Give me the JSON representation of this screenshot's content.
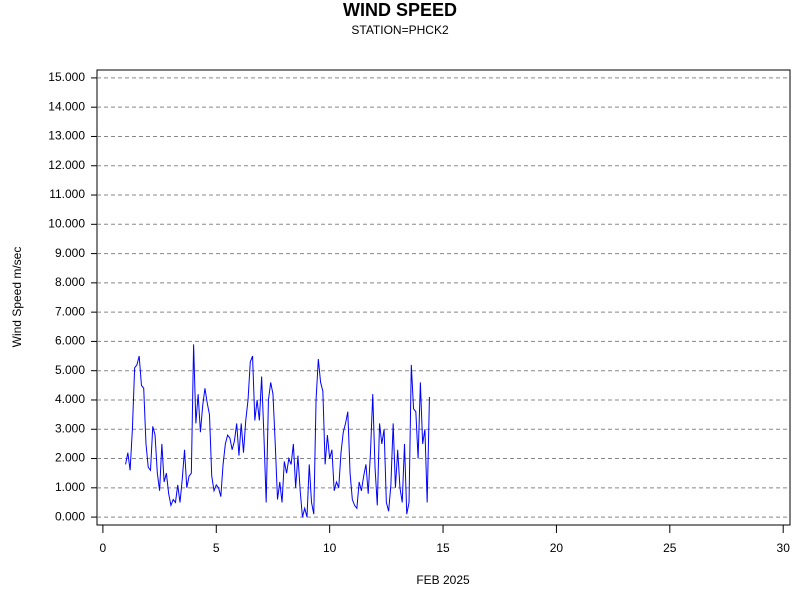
{
  "chart_data": {
    "type": "line",
    "title": "WIND SPEED",
    "subtitle": "STATION=PHCK2",
    "x_label": "FEB 2025",
    "y_label": "Wind Speed m/sec",
    "xlim": [
      -0.26,
      30.3
    ],
    "ylim": [
      -0.27,
      15.27
    ],
    "xticks": [
      0,
      5,
      10,
      15,
      20,
      25,
      30
    ],
    "yticks": [
      {
        "value": 0,
        "label": "0.000"
      },
      {
        "value": 1,
        "label": "1.000"
      },
      {
        "value": 2,
        "label": "2.000"
      },
      {
        "value": 3,
        "label": "3.000"
      },
      {
        "value": 4,
        "label": "4.000"
      },
      {
        "value": 5,
        "label": "5.000"
      },
      {
        "value": 6,
        "label": "6.000"
      },
      {
        "value": 7,
        "label": "7.000"
      },
      {
        "value": 8,
        "label": "8.000"
      },
      {
        "value": 9,
        "label": "9.000"
      },
      {
        "value": 10,
        "label": "10.000"
      },
      {
        "value": 11,
        "label": "11.000"
      },
      {
        "value": 12,
        "label": "12.000"
      },
      {
        "value": 13,
        "label": "13.000"
      },
      {
        "value": 14,
        "label": "14.000"
      },
      {
        "value": 15,
        "label": "15.000"
      }
    ],
    "grid": true,
    "x": [
      1.0,
      1.1,
      1.2,
      1.3,
      1.4,
      1.5,
      1.6,
      1.7,
      1.8,
      1.9,
      2.0,
      2.1,
      2.2,
      2.3,
      2.4,
      2.5,
      2.6,
      2.7,
      2.8,
      2.9,
      3.0,
      3.1,
      3.2,
      3.3,
      3.4,
      3.5,
      3.6,
      3.7,
      3.8,
      3.9,
      4.0,
      4.1,
      4.2,
      4.3,
      4.4,
      4.5,
      4.6,
      4.7,
      4.8,
      4.9,
      5.0,
      5.1,
      5.2,
      5.3,
      5.4,
      5.5,
      5.6,
      5.7,
      5.8,
      5.9,
      6.0,
      6.1,
      6.2,
      6.3,
      6.4,
      6.5,
      6.6,
      6.7,
      6.8,
      6.9,
      7.0,
      7.1,
      7.2,
      7.3,
      7.4,
      7.5,
      7.6,
      7.7,
      7.8,
      7.9,
      8.0,
      8.1,
      8.2,
      8.3,
      8.4,
      8.5,
      8.6,
      8.7,
      8.8,
      8.9,
      9.0,
      9.1,
      9.2,
      9.3,
      9.4,
      9.5,
      9.6,
      9.7,
      9.8,
      9.9,
      10.0,
      10.1,
      10.2,
      10.3,
      10.4,
      10.5,
      10.6,
      10.7,
      10.8,
      10.9,
      11.0,
      11.1,
      11.2,
      11.3,
      11.4,
      11.5,
      11.6,
      11.7,
      11.8,
      11.9,
      12.0,
      12.1,
      12.2,
      12.3,
      12.4,
      12.5,
      12.6,
      12.7,
      12.8,
      12.9,
      13.0,
      13.1,
      13.2,
      13.3,
      13.4,
      13.5,
      13.6,
      13.7,
      13.8,
      13.9,
      14.0,
      14.1,
      14.2,
      14.3,
      14.4
    ],
    "series": [
      {
        "name": "Wind Speed",
        "color": "#0000ff",
        "values": [
          1.8,
          2.2,
          1.6,
          3.0,
          5.1,
          5.2,
          5.5,
          4.5,
          4.4,
          2.5,
          1.7,
          1.6,
          3.1,
          2.8,
          1.5,
          0.9,
          2.5,
          1.2,
          1.5,
          0.8,
          0.4,
          0.6,
          0.5,
          1.1,
          0.5,
          1.3,
          2.3,
          1.0,
          1.4,
          1.5,
          5.9,
          3.2,
          4.2,
          2.9,
          3.8,
          4.4,
          3.9,
          3.5,
          1.4,
          0.9,
          1.1,
          1.0,
          0.7,
          1.8,
          2.5,
          2.8,
          2.7,
          2.3,
          2.6,
          3.2,
          2.1,
          3.2,
          2.2,
          3.3,
          4.0,
          5.3,
          5.5,
          3.3,
          4.0,
          3.3,
          4.8,
          2.8,
          0.5,
          4.0,
          4.6,
          4.2,
          2.5,
          0.6,
          1.2,
          0.5,
          1.9,
          1.5,
          2.0,
          1.8,
          2.5,
          1.0,
          2.1,
          0.9,
          0.0,
          0.3,
          0.0,
          1.8,
          0.5,
          0.1,
          4.0,
          5.4,
          4.6,
          4.3,
          1.8,
          2.8,
          2.0,
          2.3,
          0.9,
          1.2,
          1.0,
          2.2,
          2.9,
          3.2,
          3.6,
          1.5,
          0.6,
          0.4,
          0.3,
          1.2,
          0.9,
          1.4,
          1.8,
          0.8,
          2.2,
          4.2,
          1.7,
          0.4,
          3.2,
          2.5,
          3.0,
          0.5,
          0.2,
          1.1,
          3.2,
          1.0,
          2.3,
          1.0,
          0.5,
          2.5,
          0.1,
          0.5,
          5.2,
          3.7,
          3.6,
          2.0,
          4.6,
          2.5,
          3.0,
          0.5,
          4.1
        ]
      }
    ]
  }
}
